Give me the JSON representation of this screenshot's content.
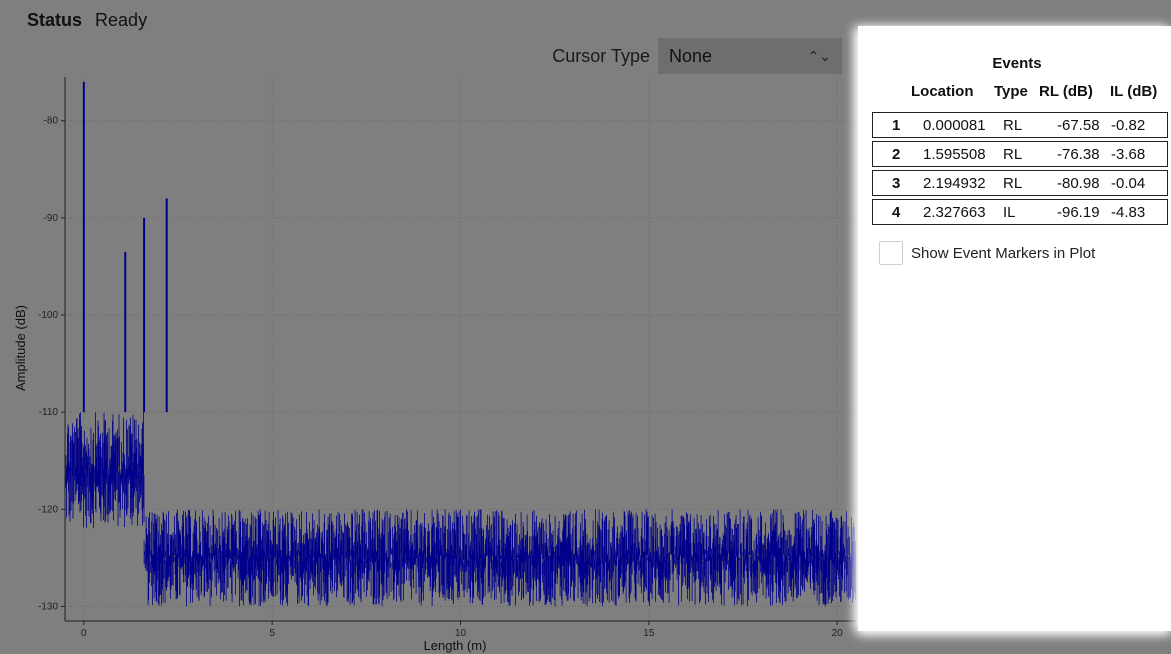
{
  "status": {
    "label": "Status",
    "value": "Ready"
  },
  "cursor": {
    "label": "Cursor Type",
    "selected": "None"
  },
  "events": {
    "title": "Events",
    "headers": {
      "location": "Location",
      "type": "Type",
      "rl": "RL (dB)",
      "il": "IL (dB)"
    },
    "rows": [
      {
        "idx": "1",
        "location": "0.000081",
        "type": "RL",
        "rl": "-67.58",
        "il": "-0.82"
      },
      {
        "idx": "2",
        "location": "1.595508",
        "type": "RL",
        "rl": "-76.38",
        "il": "-3.68"
      },
      {
        "idx": "3",
        "location": "2.194932",
        "type": "RL",
        "rl": "-80.98",
        "il": "-0.04"
      },
      {
        "idx": "4",
        "location": "2.327663",
        "type": "IL",
        "rl": "-96.19",
        "il": "-4.83"
      }
    ],
    "show_markers_label": "Show Event Markers in Plot",
    "show_markers_checked": false
  },
  "chart_data": {
    "type": "line",
    "xlabel": "Length (m)",
    "ylabel": "Amplitude (dB)",
    "xlim": [
      -0.5,
      20.5
    ],
    "ylim": [
      -131.5,
      -75.5
    ],
    "x_ticks": [
      0,
      5,
      10,
      15,
      20
    ],
    "y_ticks": [
      -80,
      -90,
      -100,
      -110,
      -120,
      -130
    ],
    "grid": true,
    "line_color": "#00008b",
    "peaks": [
      {
        "x": 0.0,
        "y": -76
      },
      {
        "x": 1.1,
        "y": -93.5
      },
      {
        "x": 1.6,
        "y": -90
      },
      {
        "x": 2.2,
        "y": -88
      }
    ],
    "noise_segments": [
      {
        "x_start": -0.5,
        "x_end": 1.6,
        "low": -122,
        "high": -110
      },
      {
        "x_start": 1.6,
        "x_end": 20.5,
        "low": -130,
        "high": -120
      }
    ]
  }
}
